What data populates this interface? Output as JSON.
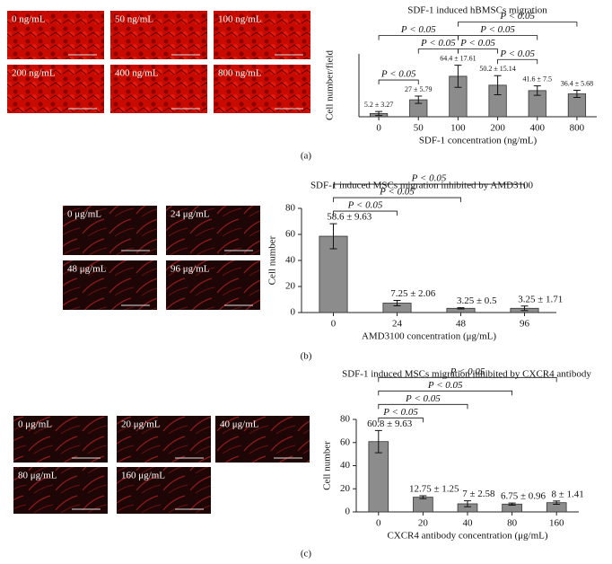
{
  "chart_data": [
    {
      "type": "bar",
      "panel": "(a)",
      "title": "SDF-1 induced hBMSCs migration",
      "xlabel": "SDF-1 concentration (ng/mL)",
      "ylabel": "Cell number/field",
      "images": [
        "0 ng/mL",
        "50 ng/mL",
        "100 ng/mL",
        "200 ng/mL",
        "400 ng/mL",
        "800 ng/mL"
      ],
      "categories": [
        "0",
        "50",
        "100",
        "200",
        "400",
        "800"
      ],
      "values": [
        5.2,
        27,
        64.4,
        50.2,
        41.6,
        36.4
      ],
      "errors": [
        3.27,
        5.79,
        17.61,
        15.14,
        7.5,
        5.68
      ],
      "value_labels": [
        "5.2 ± 3.27",
        "27 ± 5.79",
        "64.4 ± 17.61",
        "50.2 ± 15.14",
        "41.6 ± 7.5",
        "36.4 ± 5.68"
      ],
      "ylim": [
        0,
        100
      ],
      "color": "#8c8c8c",
      "brackets": [
        {
          "between": [
            0,
            1
          ],
          "label": "P < 0.05"
        },
        {
          "between": [
            1,
            2
          ],
          "label": "P < 0.05"
        },
        {
          "between": [
            0,
            2
          ],
          "label": "P < 0.05"
        },
        {
          "between": [
            2,
            3
          ],
          "label": "P < 0.05"
        },
        {
          "between": [
            3,
            4
          ],
          "label": "P < 0.05"
        },
        {
          "between": [
            2,
            4
          ],
          "label": "P < 0.05"
        },
        {
          "between": [
            2,
            5
          ],
          "label": "P < 0.05"
        }
      ]
    },
    {
      "type": "bar",
      "panel": "(b)",
      "title": "SDF-1 induced MSCs migration inhibited by AMD3100",
      "xlabel": "AMD3100 concentration (μg/mL)",
      "ylabel": "Cell number",
      "images": [
        "0 μg/mL",
        "24 μg/mL",
        "48 μg/mL",
        "96 μg/mL"
      ],
      "categories": [
        "0",
        "24",
        "48",
        "96"
      ],
      "values": [
        58.6,
        7.25,
        3.25,
        3.25
      ],
      "errors": [
        9.63,
        2.06,
        0.5,
        1.71
      ],
      "value_labels": [
        "58.6 ± 9.63",
        "7.25 ± 2.06",
        "3.25 ± 0.5",
        "3.25 ± 1.71"
      ],
      "ylim": [
        0,
        80
      ],
      "yticks": [
        0,
        20,
        40,
        60,
        80
      ],
      "color": "#8c8c8c",
      "brackets": [
        {
          "between": [
            0,
            1
          ],
          "label": "P < 0.05"
        },
        {
          "between": [
            0,
            2
          ],
          "label": "P < 0.05"
        },
        {
          "between": [
            0,
            3
          ],
          "label": "P < 0.05"
        }
      ]
    },
    {
      "type": "bar",
      "panel": "(c)",
      "title": "SDF-1 induced MSCs migration inhibited by CXCR4 antibody",
      "xlabel": "CXCR4 antibody concentration (μg/mL)",
      "ylabel": "Cell number",
      "images": [
        "0 μg/mL",
        "20 μg/mL",
        "40 μg/mL",
        "80 μg/mL",
        "160 μg/mL"
      ],
      "categories": [
        "0",
        "20",
        "40",
        "80",
        "160"
      ],
      "values": [
        60.8,
        12.75,
        7,
        6.75,
        8
      ],
      "errors": [
        9.63,
        1.25,
        2.58,
        0.96,
        1.41
      ],
      "value_labels": [
        "60.8 ± 9.63",
        "12.75 ± 1.25",
        "7 ± 2.58",
        "6.75 ± 0.96",
        "8 ± 1.41"
      ],
      "ylim": [
        0,
        80
      ],
      "yticks": [
        0,
        20,
        40,
        60,
        80
      ],
      "color": "#8c8c8c",
      "brackets": [
        {
          "between": [
            0,
            1
          ],
          "label": "P < 0.05"
        },
        {
          "between": [
            0,
            2
          ],
          "label": "P < 0.05"
        },
        {
          "between": [
            0,
            3
          ],
          "label": "P < 0.05"
        },
        {
          "between": [
            0,
            4
          ],
          "label": "P < 0.05"
        }
      ]
    }
  ]
}
